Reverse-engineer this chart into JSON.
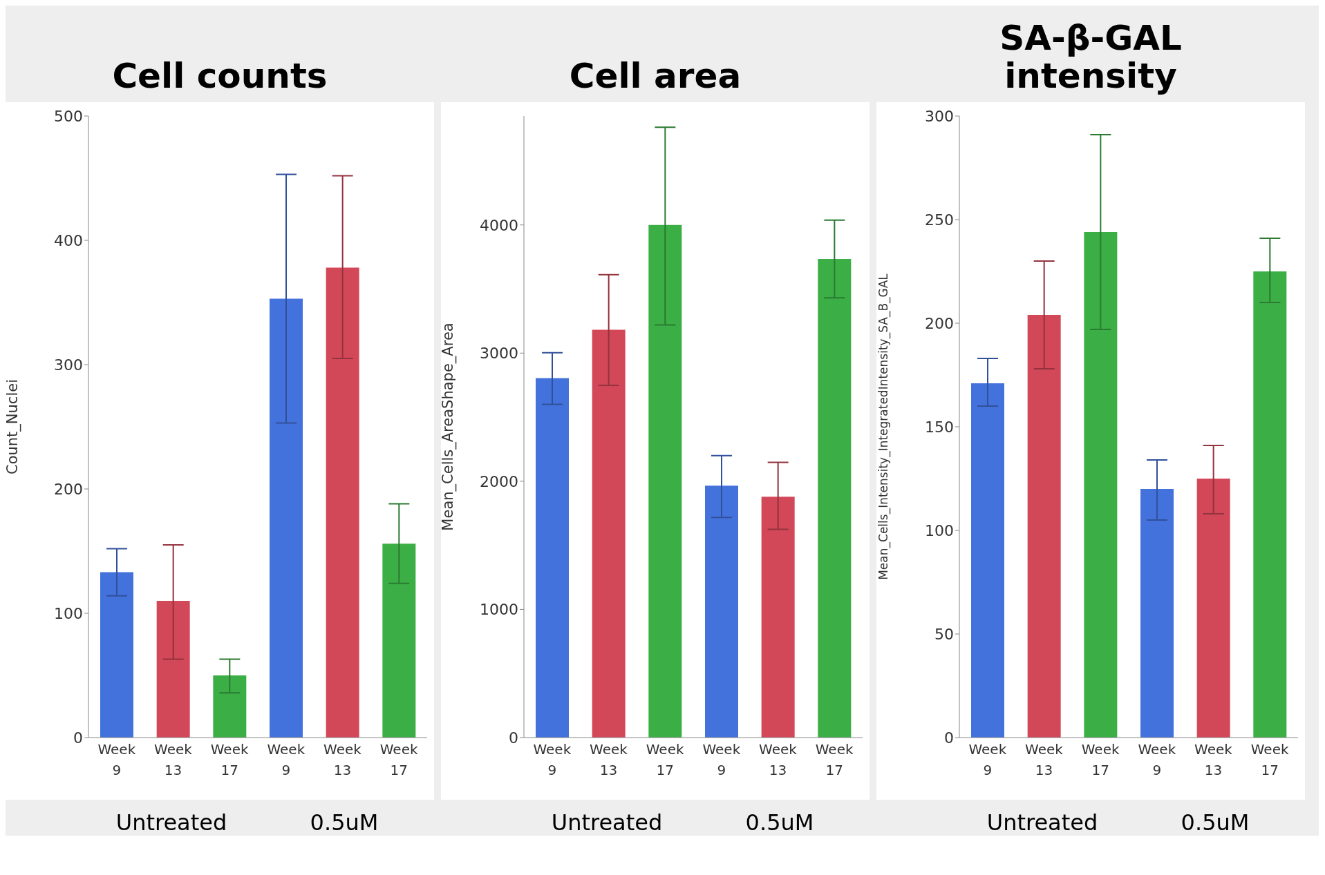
{
  "chart_data": [
    {
      "type": "bar",
      "title": "Cell counts",
      "ylabel": "Count_Nuclei",
      "categories": [
        "Week 9",
        "Week 13",
        "Week 17",
        "Week 9",
        "Week 13",
        "Week 17"
      ],
      "values": [
        133,
        110,
        50,
        353,
        378,
        156
      ],
      "errors": [
        [
          114,
          152
        ],
        [
          63,
          155
        ],
        [
          36,
          63
        ],
        [
          253,
          453
        ],
        [
          305,
          452
        ],
        [
          124,
          188
        ]
      ],
      "colors": [
        "#4472dc",
        "#d34858",
        "#3cae46",
        "#4472dc",
        "#d34858",
        "#3cae46"
      ],
      "ylim": [
        0,
        500
      ],
      "yticks": [
        0,
        100,
        200,
        300,
        400,
        500
      ],
      "annotations": [
        "Untreated",
        "0.5uM"
      ]
    },
    {
      "type": "bar",
      "title": "Cell area",
      "ylabel": "Mean_Cells_AreaShape_Area",
      "categories": [
        "Week 9",
        "Week 13",
        "Week 17",
        "Week 9",
        "Week 13",
        "Week 17"
      ],
      "values": [
        2805,
        3182,
        4000,
        1965,
        1879,
        3735
      ],
      "errors": [
        [
          2600,
          3003
        ],
        [
          2749,
          3612
        ],
        [
          3220,
          4762
        ],
        [
          1718,
          2200
        ],
        [
          1625,
          2148
        ],
        [
          3432,
          4037
        ]
      ],
      "colors": [
        "#4472dc",
        "#d34858",
        "#3cae46",
        "#4472dc",
        "#d34858",
        "#3cae46"
      ],
      "ylim": [
        0,
        4850
      ],
      "yticks": [
        0,
        1000,
        2000,
        3000,
        4000
      ],
      "annotations": [
        "Untreated",
        "0.5uM"
      ]
    },
    {
      "type": "bar",
      "title": "SA-β-GAL intensity",
      "ylabel": "Mean_Cells_Intensity_IntegratedIntensity_SA_B_GAL",
      "categories": [
        "Week 9",
        "Week 13",
        "Week 17",
        "Week 9",
        "Week 13",
        "Week 17"
      ],
      "values": [
        171,
        204,
        244,
        120,
        125,
        225
      ],
      "errors": [
        [
          160,
          183
        ],
        [
          178,
          230
        ],
        [
          197,
          291
        ],
        [
          105,
          134
        ],
        [
          108,
          141
        ],
        [
          210,
          241
        ]
      ],
      "colors": [
        "#4472dc",
        "#d34858",
        "#3cae46",
        "#4472dc",
        "#d34858",
        "#3cae46"
      ],
      "ylim": [
        0,
        300
      ],
      "yticks": [
        0,
        50,
        100,
        150,
        200,
        250,
        300
      ],
      "annotations": [
        "Untreated",
        "0.5uM"
      ]
    }
  ]
}
